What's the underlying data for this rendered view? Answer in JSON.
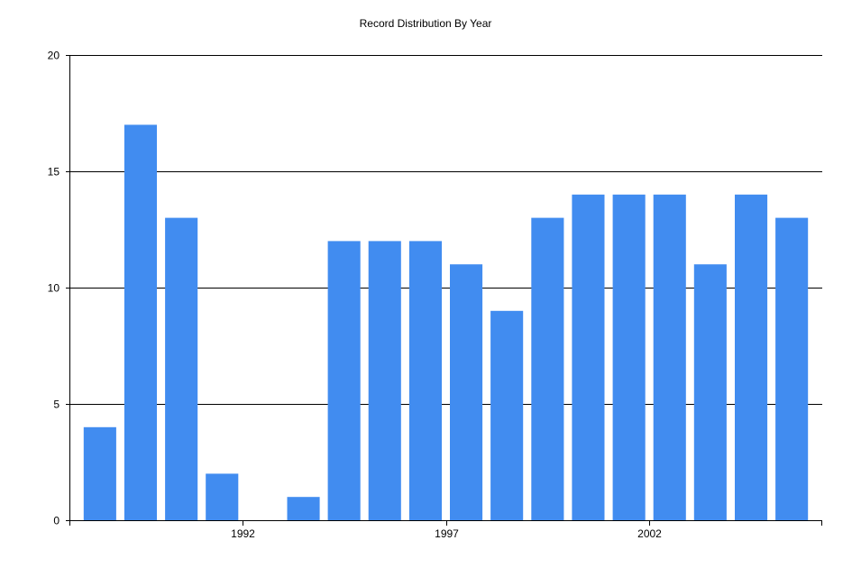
{
  "chart_data": {
    "type": "bar",
    "title": "Record Distribution By Year",
    "xlabel": "",
    "ylabel": "",
    "x": [
      1989,
      1990,
      1991,
      1992,
      1993,
      1994,
      1995,
      1996,
      1997,
      1998,
      1999,
      2000,
      2001,
      2002,
      2003,
      2004,
      2005,
      2006
    ],
    "values": [
      4,
      17,
      13,
      2,
      0,
      1,
      12,
      12,
      12,
      11,
      9,
      13,
      14,
      14,
      14,
      11,
      14,
      13
    ],
    "ylim": [
      0,
      20
    ],
    "yticks": [
      "0",
      "5",
      "10",
      "15",
      "20"
    ],
    "xticks": [
      {
        "x": 1992,
        "label": "1992"
      },
      {
        "x": 1997,
        "label": "1997"
      },
      {
        "x": 2002,
        "label": "2002"
      }
    ],
    "grid": true,
    "bar_color": "#418CF0"
  }
}
